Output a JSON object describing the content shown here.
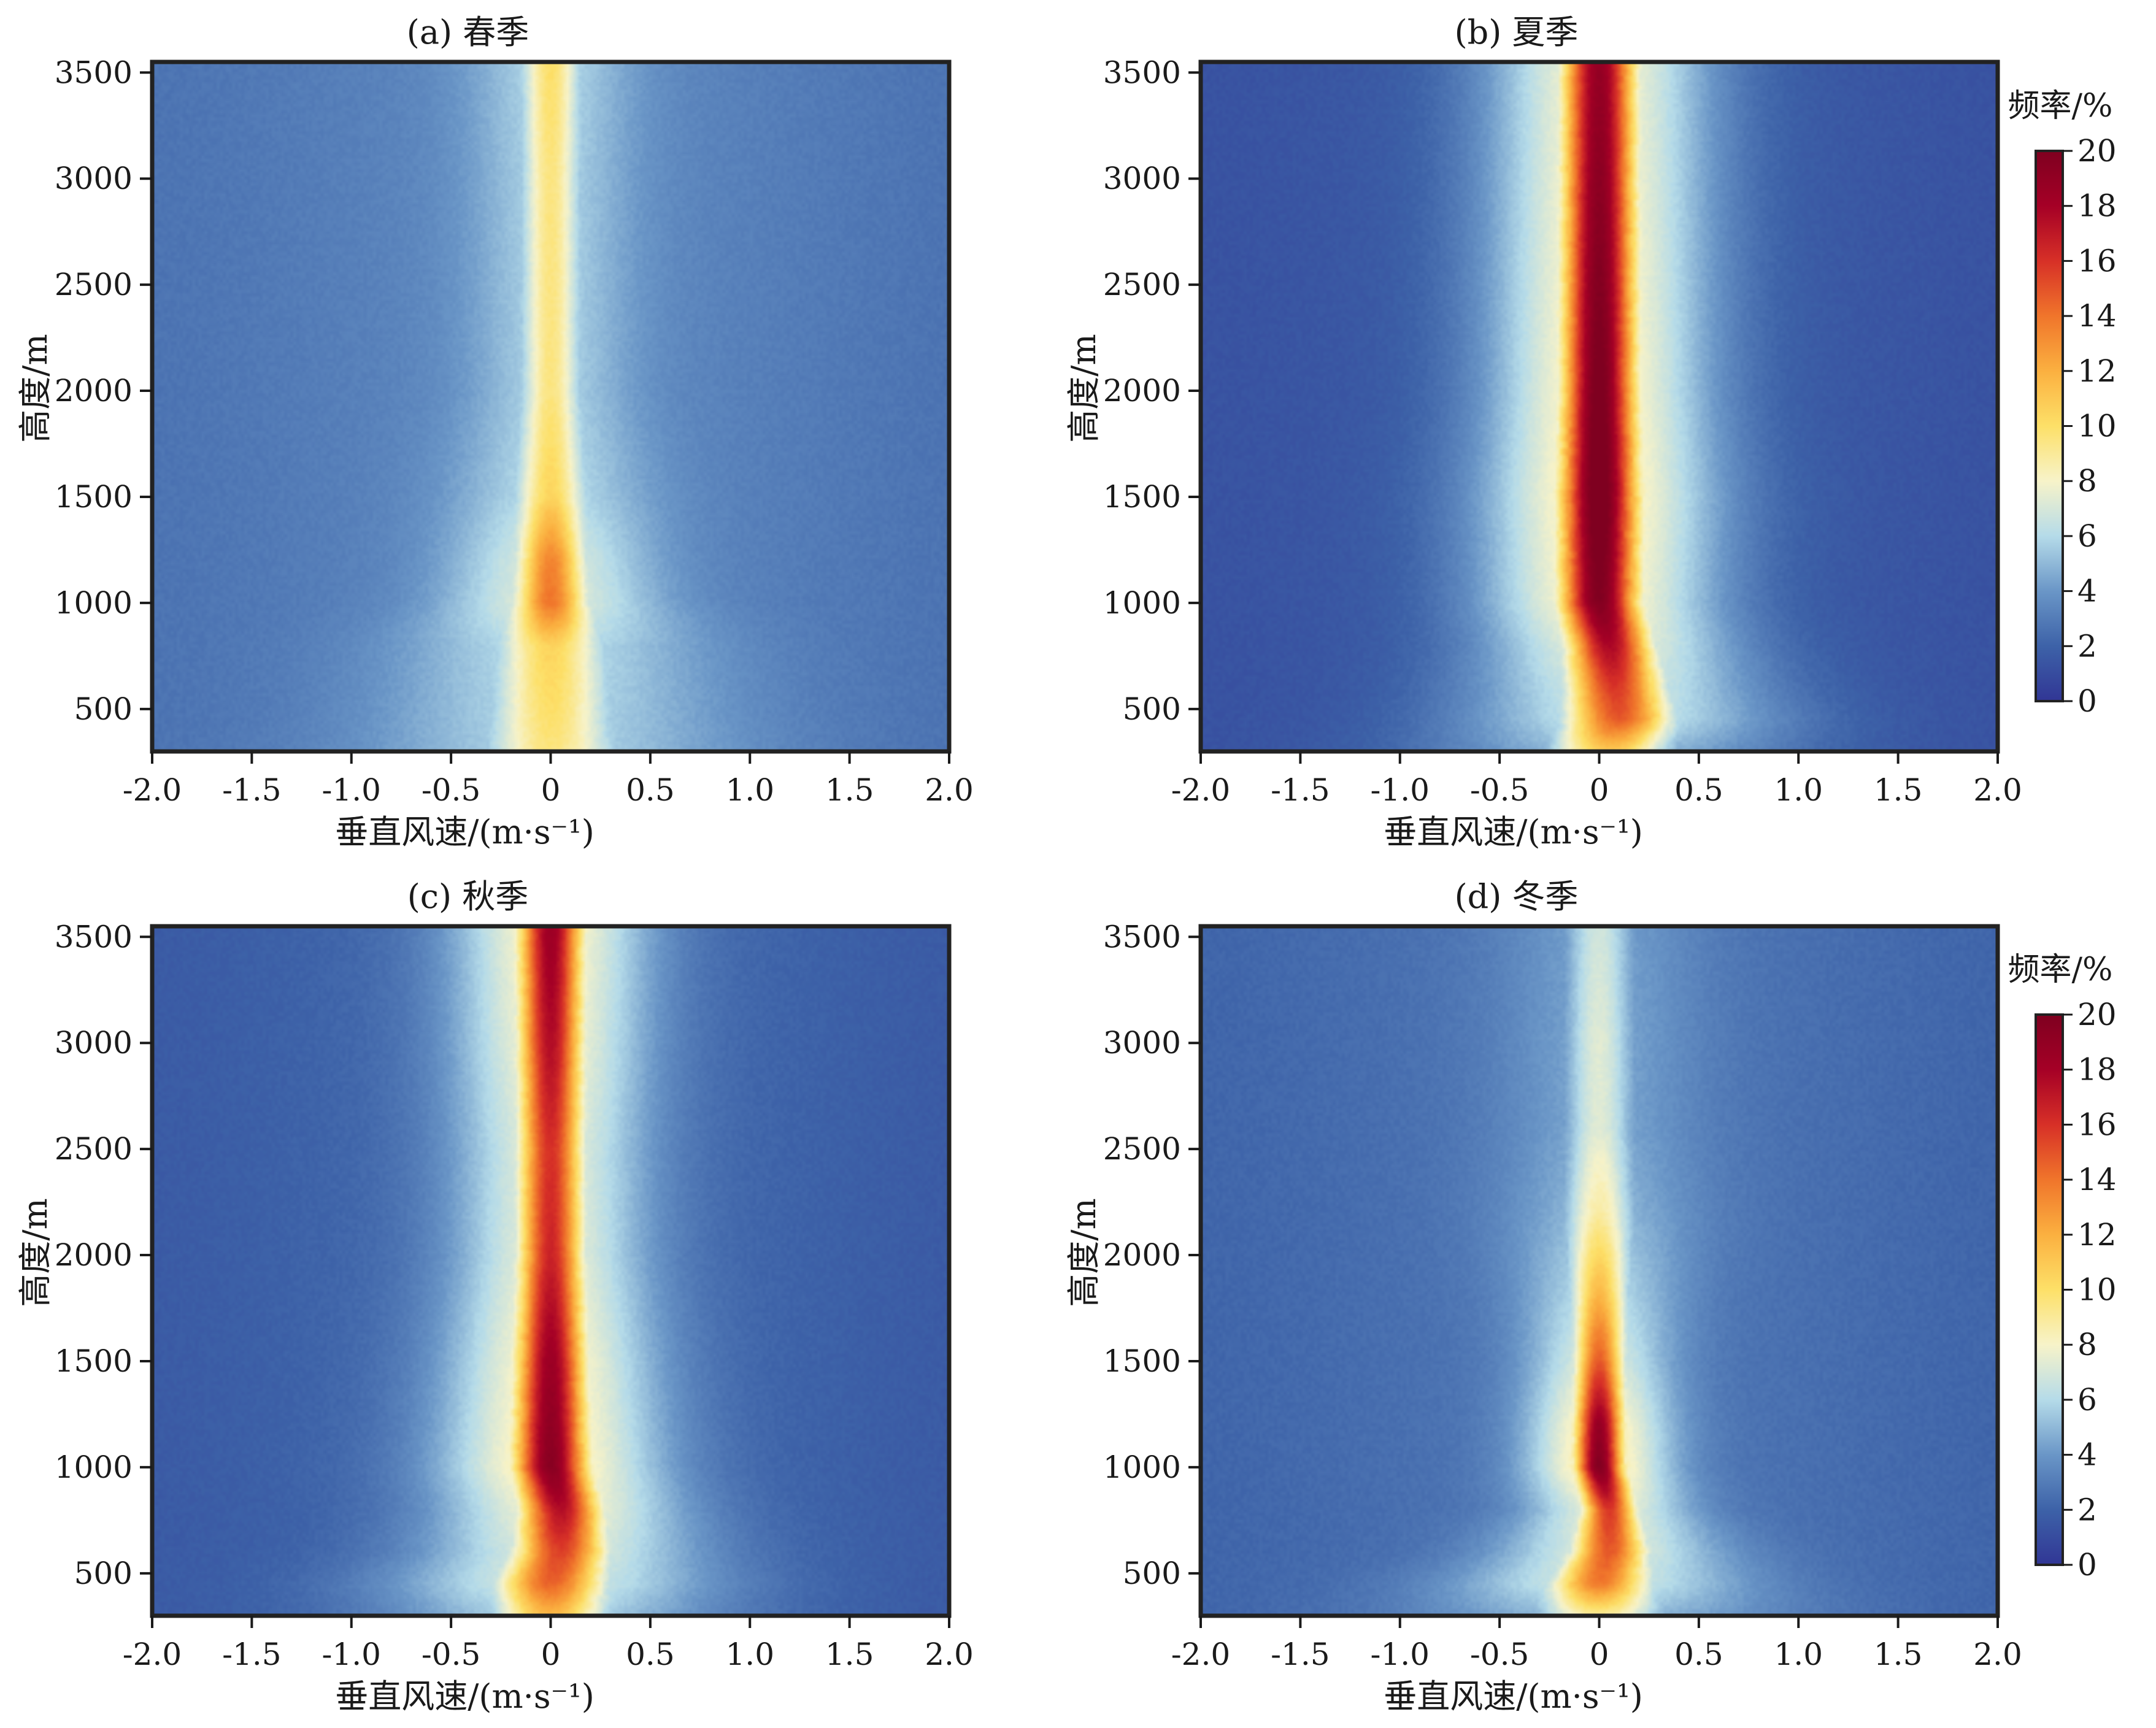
{
  "chart_data": [
    {
      "type": "heatmap",
      "title": "(a) 春季",
      "xlabel": "垂直风速/(m·s⁻¹)",
      "ylabel": "高度/m",
      "xlim": [
        -2.0,
        2.0
      ],
      "ylim": [
        300,
        3550
      ],
      "xticks": [
        "-2.0",
        "-1.5",
        "-1.0",
        "-0.5",
        "0",
        "0.5",
        "1.0",
        "1.5",
        "2.0"
      ],
      "yticks": [
        "500",
        "1000",
        "1500",
        "2000",
        "2500",
        "3000",
        "3500"
      ],
      "value_label": "频率/%",
      "value_range": [
        0,
        20
      ],
      "ridge": {
        "height": [
          300,
          500,
          800,
          1000,
          1200,
          1500,
          2000,
          2500,
          3000,
          3550
        ],
        "center": [
          0.0,
          0.0,
          0.0,
          0.0,
          0.0,
          0.0,
          0.0,
          0.0,
          0.0,
          0.0
        ],
        "width": [
          0.22,
          0.2,
          0.18,
          0.13,
          0.12,
          0.12,
          0.1,
          0.1,
          0.1,
          0.1
        ],
        "peak": [
          6,
          6.5,
          7,
          10.5,
          10,
          7,
          6,
          6,
          6,
          6.5
        ]
      },
      "background": [
        2.5,
        3.5
      ]
    },
    {
      "type": "heatmap",
      "title": "(b) 夏季",
      "xlabel": "垂直风速/(m·s⁻¹)",
      "ylabel": "高度/m",
      "xlim": [
        -2.0,
        2.0
      ],
      "ylim": [
        300,
        3550
      ],
      "xticks": [
        "-2.0",
        "-1.5",
        "-1.0",
        "-0.5",
        "0",
        "0.5",
        "1.0",
        "1.5",
        "2.0"
      ],
      "yticks": [
        "500",
        "1000",
        "1500",
        "2000",
        "2500",
        "3000",
        "3500"
      ],
      "value_label": "频率/%",
      "value_range": [
        0,
        20
      ],
      "ridge": {
        "height": [
          300,
          450,
          600,
          800,
          1000,
          1500,
          2000,
          2500,
          3000,
          3550
        ],
        "center": [
          0.05,
          0.1,
          0.08,
          0.05,
          0.0,
          0.0,
          0.0,
          0.0,
          0.0,
          0.0
        ],
        "width": [
          0.22,
          0.2,
          0.18,
          0.16,
          0.15,
          0.15,
          0.14,
          0.14,
          0.14,
          0.14
        ],
        "peak": [
          9,
          13,
          14,
          16,
          18,
          19,
          18.5,
          18,
          17.5,
          17
        ]
      },
      "background": [
        1.2,
        1.8
      ]
    },
    {
      "type": "heatmap",
      "title": "(c) 秋季",
      "xlabel": "垂直风速/(m·s⁻¹)",
      "ylabel": "高度/m",
      "xlim": [
        -2.0,
        2.0
      ],
      "ylim": [
        300,
        3550
      ],
      "xticks": [
        "-2.0",
        "-1.5",
        "-1.0",
        "-0.5",
        "0",
        "0.5",
        "1.0",
        "1.5",
        "2.0"
      ],
      "yticks": [
        "500",
        "1000",
        "1500",
        "2000",
        "2500",
        "3000",
        "3500"
      ],
      "value_label": "频率/%",
      "value_range": [
        0,
        20
      ],
      "ridge": {
        "height": [
          300,
          450,
          600,
          800,
          1000,
          1500,
          2000,
          2500,
          3000,
          3550
        ],
        "center": [
          0.0,
          0.0,
          0.05,
          0.05,
          0.0,
          0.0,
          0.0,
          0.0,
          0.0,
          0.0
        ],
        "width": [
          0.2,
          0.2,
          0.17,
          0.15,
          0.14,
          0.13,
          0.12,
          0.12,
          0.12,
          0.12
        ],
        "peak": [
          9,
          12,
          13,
          15,
          17,
          16,
          14,
          13.5,
          15,
          16
        ]
      },
      "background": [
        1.5,
        2.5
      ]
    },
    {
      "type": "heatmap",
      "title": "(d) 冬季",
      "xlabel": "垂直风速/(m·s⁻¹)",
      "ylabel": "高度/m",
      "xlim": [
        -2.0,
        2.0
      ],
      "ylim": [
        300,
        3550
      ],
      "xticks": [
        "-2.0",
        "-1.5",
        "-1.0",
        "-0.5",
        "0",
        "0.5",
        "1.0",
        "1.5",
        "2.0"
      ],
      "yticks": [
        "500",
        "1000",
        "1500",
        "2000",
        "2500",
        "3000",
        "3500"
      ],
      "value_label": "频率/%",
      "value_range": [
        0,
        20
      ],
      "ridge": {
        "height": [
          300,
          450,
          600,
          800,
          1000,
          1200,
          1500,
          1800,
          2200,
          2600,
          3000,
          3550
        ],
        "center": [
          0.0,
          0.0,
          0.05,
          0.05,
          0.0,
          0.0,
          0.0,
          0.0,
          0.0,
          0.0,
          0.0,
          0.0
        ],
        "width": [
          0.22,
          0.18,
          0.14,
          0.1,
          0.09,
          0.09,
          0.09,
          0.1,
          0.12,
          0.12,
          0.12,
          0.12
        ],
        "peak": [
          6,
          11,
          12,
          13,
          17,
          16,
          12,
          9,
          6,
          4.5,
          4.5,
          4
        ]
      },
      "background": [
        2.0,
        2.8
      ]
    }
  ],
  "colorbar": {
    "title": "频率/%",
    "ticks": [
      "0",
      "2",
      "4",
      "6",
      "8",
      "10",
      "12",
      "14",
      "16",
      "18",
      "20"
    ],
    "colors": [
      "#313695",
      "#3d62a8",
      "#6a96c7",
      "#b5dbe9",
      "#f7f3c9",
      "#fde068",
      "#fbb040",
      "#f0752b",
      "#d73027",
      "#a50026",
      "#7f0020"
    ]
  },
  "colors": {
    "axes_edge": "#222222",
    "tick": "#1a1a1a"
  }
}
